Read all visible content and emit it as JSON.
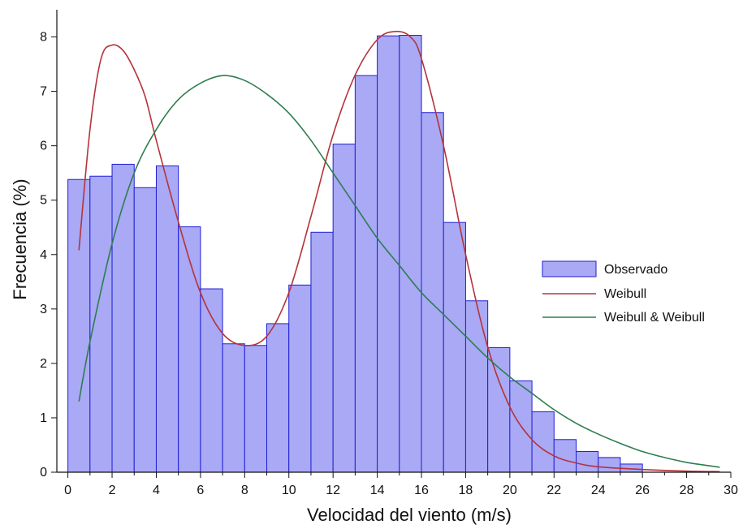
{
  "chart_data": {
    "type": "bar",
    "xlabel": "Velocidad del viento (m/s)",
    "ylabel": "Frecuencia (%)",
    "xlim": [
      -0.5,
      30
    ],
    "ylim": [
      0,
      8.5
    ],
    "x_ticks": [
      0,
      2,
      4,
      6,
      8,
      10,
      12,
      14,
      16,
      18,
      20,
      22,
      24,
      26,
      28,
      30
    ],
    "y_ticks": [
      0,
      1,
      2,
      3,
      4,
      5,
      6,
      7,
      8
    ],
    "grid": false,
    "legend_position": "right",
    "series": [
      {
        "name": "Observado",
        "type": "bar",
        "color": "#a9a9f5",
        "edge_color": "#1f1fd6",
        "bin_width": 1,
        "x": [
          0.5,
          1.5,
          2.5,
          3.5,
          4.5,
          5.5,
          6.5,
          7.5,
          8.5,
          9.5,
          10.5,
          11.5,
          12.5,
          13.5,
          14.5,
          15.5,
          16.5,
          17.5,
          18.5,
          19.5,
          20.5,
          21.5,
          22.5,
          23.5,
          24.5,
          25.5
        ],
        "values": [
          5.38,
          5.44,
          5.66,
          5.23,
          5.63,
          4.51,
          3.37,
          2.36,
          2.33,
          2.73,
          3.44,
          4.41,
          6.03,
          7.29,
          8.02,
          8.03,
          6.61,
          4.59,
          3.15,
          2.29,
          1.68,
          1.11,
          0.6,
          0.38,
          0.27,
          0.15
        ]
      },
      {
        "name": "Weibull",
        "type": "line",
        "color": "#b5333a",
        "x": [
          0.5,
          1.0,
          1.5,
          2.0,
          2.5,
          3.0,
          3.5,
          4.0,
          5.0,
          6.0,
          7.0,
          8.0,
          9.0,
          10.0,
          11.0,
          12.0,
          13.0,
          14.0,
          14.8,
          15.5,
          16.0,
          17.0,
          18.0,
          19.0,
          20.0,
          21.0,
          22.0,
          23.0,
          24.0,
          26.0,
          28.0,
          29.5
        ],
        "values": [
          4.08,
          6.3,
          7.6,
          7.85,
          7.75,
          7.4,
          6.9,
          6.1,
          4.6,
          3.3,
          2.55,
          2.33,
          2.5,
          3.3,
          4.7,
          6.2,
          7.3,
          7.95,
          8.1,
          8.0,
          7.6,
          6.0,
          4.0,
          2.3,
          1.2,
          0.6,
          0.3,
          0.17,
          0.1,
          0.05,
          0.02,
          0.01
        ]
      },
      {
        "name": "Weibull & Weibull",
        "type": "line",
        "color": "#2e7d4f",
        "x": [
          0.5,
          1.0,
          2.0,
          3.0,
          4.0,
          5.0,
          6.0,
          7.0,
          8.0,
          9.0,
          10.0,
          11.0,
          12.0,
          13.0,
          14.0,
          15.0,
          16.0,
          17.0,
          18.0,
          19.0,
          20.0,
          21.0,
          22.0,
          23.0,
          24.0,
          25.0,
          26.0,
          27.0,
          28.0,
          29.0,
          29.5
        ],
        "values": [
          1.3,
          2.4,
          4.2,
          5.5,
          6.3,
          6.85,
          7.15,
          7.29,
          7.2,
          6.95,
          6.6,
          6.1,
          5.5,
          4.9,
          4.3,
          3.8,
          3.3,
          2.9,
          2.5,
          2.1,
          1.75,
          1.45,
          1.15,
          0.9,
          0.7,
          0.53,
          0.38,
          0.27,
          0.18,
          0.12,
          0.09
        ]
      }
    ]
  }
}
